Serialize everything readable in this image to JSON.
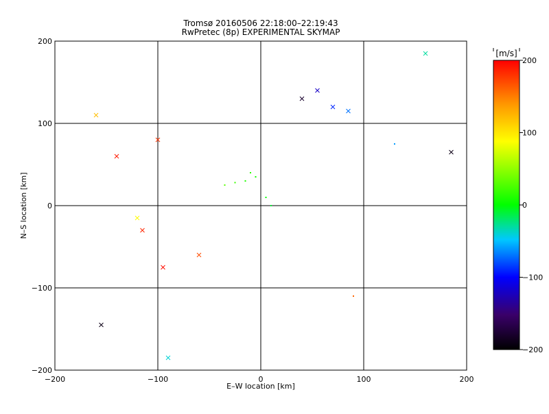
{
  "chart_data": {
    "type": "scatter",
    "title": "Tromsø 20160506 22:18:00–22:19:43",
    "subtitle": "RwPretec (8p) EXPERIMENTAL SKYMAP",
    "xlabel": "E–W location [km]",
    "ylabel": "N–S location [km]",
    "xlim": [
      -200,
      200
    ],
    "ylim": [
      -200,
      200
    ],
    "xticks": [
      -200,
      -100,
      0,
      100,
      200
    ],
    "yticks": [
      -200,
      -100,
      0,
      100,
      200
    ],
    "xtick_labels": [
      "−200",
      "−100",
      "0",
      "100",
      "200"
    ],
    "ytick_labels": [
      "−200",
      "−100",
      "0",
      "100",
      "200"
    ],
    "grid_lines_x": [
      -100,
      0,
      100
    ],
    "grid_lines_y": [
      -100,
      0,
      100
    ],
    "colorbar": {
      "label": "[m/s]",
      "range": [
        -200,
        200
      ],
      "ticks": [
        200,
        100,
        0,
        -100,
        -200
      ],
      "tick_labels": [
        "200",
        "100",
        "0",
        "−100",
        "−200"
      ],
      "colormap": [
        "#000000",
        "#3a0069",
        "#0000ff",
        "#00c8ff",
        "#00ff00",
        "#ffff00",
        "#ff9600",
        "#ff0000"
      ]
    },
    "markers": [
      "dot",
      "cross"
    ],
    "points": [
      {
        "x": -5,
        "y": 35,
        "v": 5,
        "m": "dot"
      },
      {
        "x": -15,
        "y": 30,
        "v": 10,
        "m": "dot"
      },
      {
        "x": -25,
        "y": 28,
        "v": 20,
        "m": "dot"
      },
      {
        "x": -35,
        "y": 25,
        "v": 30,
        "m": "dot"
      },
      {
        "x": 5,
        "y": 10,
        "v": 0,
        "m": "dot"
      },
      {
        "x": 10,
        "y": 0,
        "v": -10,
        "m": "dot"
      },
      {
        "x": -10,
        "y": 40,
        "v": 15,
        "m": "dot"
      },
      {
        "x": 40,
        "y": 130,
        "v": -180,
        "m": "cross"
      },
      {
        "x": 55,
        "y": 140,
        "v": -120,
        "m": "cross"
      },
      {
        "x": 70,
        "y": 120,
        "v": -90,
        "m": "cross"
      },
      {
        "x": 85,
        "y": 115,
        "v": -70,
        "m": "cross"
      },
      {
        "x": -100,
        "y": 80,
        "v": 180,
        "m": "cross"
      },
      {
        "x": -140,
        "y": 60,
        "v": 190,
        "m": "cross"
      },
      {
        "x": -160,
        "y": 110,
        "v": 120,
        "m": "cross"
      },
      {
        "x": -95,
        "y": -75,
        "v": 195,
        "m": "cross"
      },
      {
        "x": -115,
        "y": -30,
        "v": 185,
        "m": "cross"
      },
      {
        "x": -120,
        "y": -15,
        "v": 90,
        "m": "cross"
      },
      {
        "x": -60,
        "y": -60,
        "v": 170,
        "m": "cross"
      },
      {
        "x": 90,
        "y": -110,
        "v": 160,
        "m": "dot"
      },
      {
        "x": -155,
        "y": -145,
        "v": -190,
        "m": "cross"
      },
      {
        "x": -90,
        "y": -185,
        "v": -40,
        "m": "cross"
      },
      {
        "x": 160,
        "y": 185,
        "v": -30,
        "m": "cross"
      },
      {
        "x": 185,
        "y": 65,
        "v": -190,
        "m": "cross"
      },
      {
        "x": 130,
        "y": 75,
        "v": -60,
        "m": "dot"
      }
    ]
  }
}
